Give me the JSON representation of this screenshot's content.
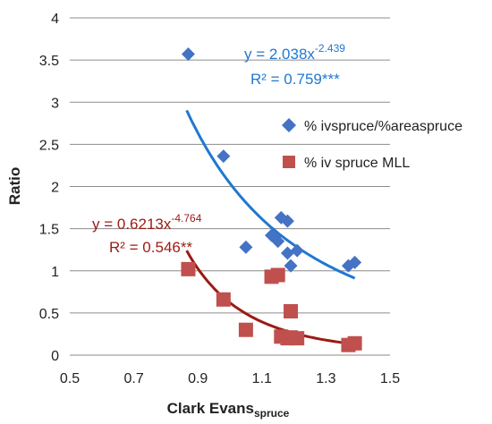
{
  "chart_data": {
    "type": "scatter",
    "xlabel": "Clark Evans",
    "xlabel_subscript": "spruce",
    "ylabel": "Ratio",
    "xlim": [
      0.5,
      1.5
    ],
    "ylim": [
      0,
      4
    ],
    "x_ticks": [
      "0.5",
      "0.7",
      "0.9",
      "1.1",
      "1.3",
      "1.5"
    ],
    "y_ticks": [
      "0",
      "0.5",
      "1",
      "1.5",
      "2",
      "2.5",
      "3",
      "3.5",
      "4"
    ],
    "grid": "horizontal",
    "legend_position": "right",
    "series": [
      {
        "name": "% ivspruce/%areaspruce",
        "color": "#4472C4",
        "marker": "diamond",
        "x": [
          0.87,
          0.98,
          1.05,
          1.13,
          1.14,
          1.15,
          1.16,
          1.18,
          1.18,
          1.19,
          1.21,
          1.37,
          1.39
        ],
        "y": [
          3.57,
          2.36,
          1.28,
          1.42,
          1.4,
          1.35,
          1.63,
          1.59,
          1.21,
          1.06,
          1.24,
          1.06,
          1.1
        ],
        "fit": {
          "type": "power",
          "a": 2.038,
          "b": -2.439,
          "x_range": [
            0.865,
            1.39
          ],
          "color": "#1F78D1",
          "equation": "y = 2.038x",
          "exponent": "-2.439",
          "r2": "R² = 0.759***"
        }
      },
      {
        "name": "% iv spruce MLL",
        "color": "#C0504D",
        "marker": "square",
        "x": [
          0.87,
          0.98,
          1.05,
          1.13,
          1.15,
          1.16,
          1.18,
          1.19,
          1.19,
          1.21,
          1.37,
          1.39
        ],
        "y": [
          1.02,
          0.66,
          0.3,
          0.93,
          0.95,
          0.22,
          0.2,
          0.52,
          0.21,
          0.2,
          0.12,
          0.14
        ],
        "fit": {
          "type": "power",
          "a": 0.6213,
          "b": -4.764,
          "x_range": [
            0.865,
            1.39
          ],
          "color": "#9B1B14",
          "equation": "y = 0.6213x",
          "exponent": "-4.764",
          "r2": "R² = 0.546**"
        }
      }
    ]
  }
}
